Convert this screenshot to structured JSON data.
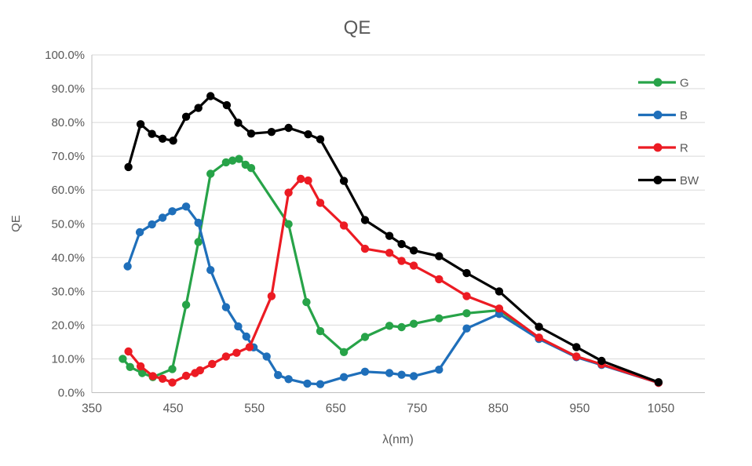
{
  "chart_data": {
    "type": "line",
    "title": "QE",
    "xlabel": "λ(nm)",
    "ylabel": "QE",
    "x_ticks": [
      350,
      450,
      550,
      650,
      750,
      850,
      950,
      1050
    ],
    "y_tick_labels": [
      "100.0%",
      "90.0%",
      "80.0%",
      "70.0%",
      "60.0%",
      "50.0%",
      "40.0%",
      "30.0%",
      "20.0%",
      "10.0%",
      "0.0%"
    ],
    "xlim": [
      350,
      1104
    ],
    "ylim_percent": [
      0,
      100
    ],
    "grid": true,
    "legend_position": "top-right",
    "colors": {
      "grid": "#d9d9d9",
      "axis": "#bfbfbf",
      "text": "#595959",
      "legend_text": "#595959",
      "background": "#ffffff"
    },
    "series": [
      {
        "name": "G",
        "color": "#27a348",
        "points": [
          [
            388,
            10.0
          ],
          [
            397,
            7.6
          ],
          [
            412,
            5.8
          ],
          [
            425,
            4.6
          ],
          [
            449,
            7.0
          ],
          [
            466,
            26.0
          ],
          [
            481,
            44.6
          ],
          [
            496,
            64.8
          ],
          [
            515,
            68.2
          ],
          [
            523,
            68.7
          ],
          [
            531,
            69.2
          ],
          [
            539,
            67.5
          ],
          [
            546,
            66.5
          ],
          [
            592,
            49.9
          ],
          [
            614,
            26.8
          ],
          [
            631,
            18.2
          ],
          [
            660,
            12.0
          ],
          [
            686,
            16.5
          ],
          [
            716,
            19.8
          ],
          [
            731,
            19.4
          ],
          [
            746,
            20.4
          ],
          [
            777,
            22.0
          ],
          [
            811,
            23.5
          ],
          [
            851,
            24.4
          ],
          [
            900,
            16.1
          ],
          [
            946,
            10.7
          ],
          [
            977,
            8.3
          ],
          [
            1047,
            3.0
          ]
        ]
      },
      {
        "name": "B",
        "color": "#1f6fba",
        "points": [
          [
            394,
            37.4
          ],
          [
            409,
            47.5
          ],
          [
            424,
            49.8
          ],
          [
            437,
            51.8
          ],
          [
            449,
            53.7
          ],
          [
            466,
            55.1
          ],
          [
            481,
            50.3
          ],
          [
            496,
            36.3
          ],
          [
            515,
            25.3
          ],
          [
            530,
            19.6
          ],
          [
            540,
            16.6
          ],
          [
            549,
            13.4
          ],
          [
            565,
            10.7
          ],
          [
            579,
            5.2
          ],
          [
            592,
            4.0
          ],
          [
            615,
            2.7
          ],
          [
            631,
            2.5
          ],
          [
            660,
            4.6
          ],
          [
            686,
            6.2
          ],
          [
            716,
            5.8
          ],
          [
            731,
            5.3
          ],
          [
            746,
            4.9
          ],
          [
            777,
            6.8
          ],
          [
            811,
            19.0
          ],
          [
            851,
            23.3
          ],
          [
            900,
            15.9
          ],
          [
            946,
            10.5
          ],
          [
            977,
            8.2
          ],
          [
            1047,
            2.9
          ]
        ]
      },
      {
        "name": "R",
        "color": "#ec1b23",
        "points": [
          [
            395,
            12.2
          ],
          [
            410,
            7.8
          ],
          [
            425,
            4.9
          ],
          [
            437,
            4.1
          ],
          [
            449,
            3.0
          ],
          [
            466,
            5.0
          ],
          [
            477,
            5.8
          ],
          [
            483,
            6.6
          ],
          [
            498,
            8.5
          ],
          [
            515,
            10.7
          ],
          [
            528,
            11.8
          ],
          [
            544,
            13.5
          ],
          [
            571,
            28.6
          ],
          [
            592,
            59.2
          ],
          [
            607,
            63.3
          ],
          [
            616,
            62.8
          ],
          [
            631,
            56.2
          ],
          [
            660,
            49.5
          ],
          [
            686,
            42.6
          ],
          [
            716,
            41.4
          ],
          [
            731,
            39.0
          ],
          [
            746,
            37.6
          ],
          [
            777,
            33.6
          ],
          [
            811,
            28.6
          ],
          [
            851,
            24.9
          ],
          [
            900,
            16.3
          ],
          [
            946,
            10.7
          ],
          [
            977,
            8.4
          ],
          [
            1047,
            2.9
          ]
        ]
      },
      {
        "name": "BW",
        "color": "#000000",
        "points": [
          [
            395,
            66.8
          ],
          [
            410,
            79.5
          ],
          [
            424,
            76.6
          ],
          [
            437,
            75.2
          ],
          [
            450,
            74.6
          ],
          [
            466,
            81.7
          ],
          [
            481,
            84.3
          ],
          [
            496,
            87.8
          ],
          [
            516,
            85.1
          ],
          [
            530,
            79.9
          ],
          [
            546,
            76.7
          ],
          [
            571,
            77.2
          ],
          [
            592,
            78.4
          ],
          [
            616,
            76.5
          ],
          [
            631,
            75.0
          ],
          [
            660,
            62.7
          ],
          [
            686,
            51.1
          ],
          [
            716,
            46.4
          ],
          [
            731,
            44.0
          ],
          [
            746,
            42.1
          ],
          [
            777,
            40.4
          ],
          [
            811,
            35.4
          ],
          [
            851,
            30.0
          ],
          [
            900,
            19.5
          ],
          [
            946,
            13.5
          ],
          [
            977,
            9.4
          ],
          [
            1047,
            3.1
          ]
        ]
      }
    ]
  }
}
